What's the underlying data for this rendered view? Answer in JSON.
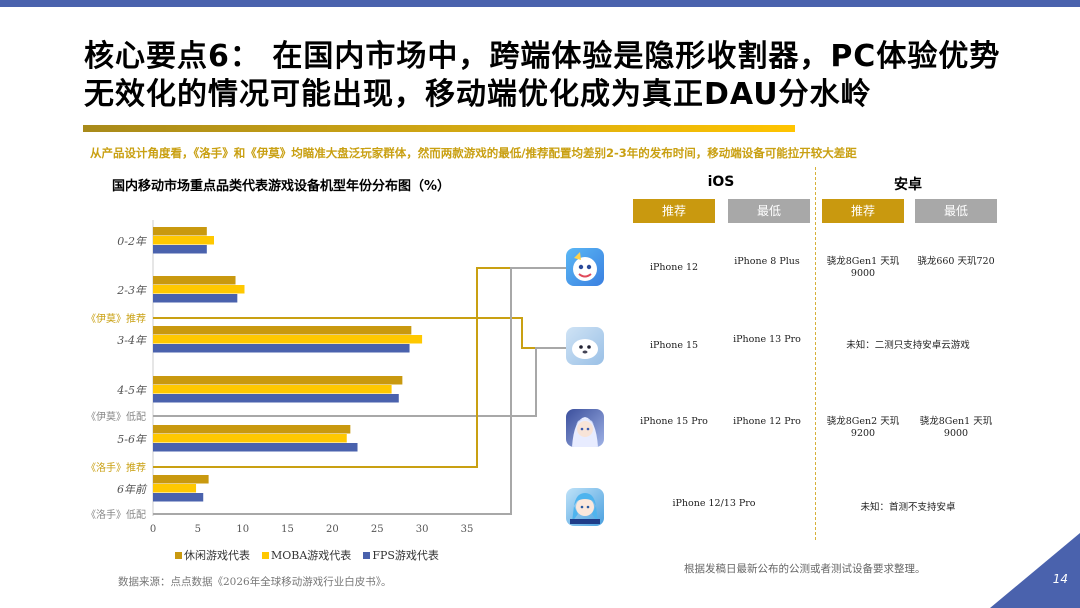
{
  "title_line1": "核心要点6： 在国内市场中，跨端体验是隐形收割器，PC体验优势",
  "title_line2": "无效化的情况可能出现，移动端优化成为真正DAU分水岭",
  "subtitle": "从产品设计角度看，《洛手》和《伊莫》均瞄准大盘泛玩家群体，然而两款游戏的最低/推荐配置均差别2-3年的发布时间，移动端设备可能拉开较大差距",
  "chart_title": "国内移动市场重点品类代表游戏设备机型年份分布图（%）",
  "chart_data": {
    "type": "bar",
    "orientation": "horizontal",
    "title": "国内移动市场重点品类代表游戏设备机型年份分布图（%）",
    "categories": [
      "0-2年",
      "2-3年",
      "3-4年",
      "4-5年",
      "5-6年",
      "6年前"
    ],
    "series": [
      {
        "name": "休闲游戏代表",
        "values": [
          6,
          9.2,
          28.8,
          27.8,
          22,
          6.2
        ]
      },
      {
        "name": "MOBA游戏代表",
        "values": [
          6.8,
          10.2,
          30,
          26.6,
          21.6,
          4.8
        ]
      },
      {
        "name": "FPS游戏代表",
        "values": [
          6,
          9.4,
          28.6,
          27.4,
          22.8,
          5.6
        ]
      }
    ],
    "xlim": [
      0,
      35
    ],
    "xticks": [
      0,
      5,
      10,
      15,
      20,
      25,
      30,
      35
    ],
    "markers": [
      {
        "label": "《伊莫》推荐",
        "highlight": true
      },
      {
        "label": "《伊莫》低配",
        "highlight": false
      },
      {
        "label": "《洛手》推荐",
        "highlight": true
      },
      {
        "label": "《洛手》低配",
        "highlight": false
      }
    ],
    "grid": false,
    "legend_position": "bottom"
  },
  "legend": [
    "休闲游戏代表",
    "MOBA游戏代表",
    "FPS游戏代表"
  ],
  "colors": {
    "series1": "#c9990f",
    "series2": "#ffc800",
    "series3": "#4a62ad",
    "accent_gold": "#c9a012",
    "accent_blue": "#4a62ad",
    "gray": "#a8a8a8"
  },
  "source": "数据来源：点点数据《2026年全球移动游戏行业白皮书》。",
  "table": {
    "headers": [
      "iOS",
      "安卓"
    ],
    "buttons": [
      "推荐",
      "最低",
      "推荐",
      "最低"
    ],
    "rows": [
      {
        "icon": "blue-mascot-game-icon",
        "ios_rec": "iPhone 12",
        "ios_min": "iPhone 8 Plus",
        "and_rec": "骁龙8Gen1 天玑9000",
        "and_min": "骁龙660 天玑720"
      },
      {
        "icon": "white-seal-game-icon",
        "ios_rec": "iPhone 15",
        "ios_min": "iPhone 13 Pro",
        "and_merged": "未知：二测只支持安卓云游戏"
      },
      {
        "icon": "anime-character-game-icon",
        "ios_rec": "iPhone 15 Pro",
        "ios_min": "iPhone 12 Pro",
        "and_rec": "骁龙8Gen2 天玑9200",
        "and_min": "骁龙8Gen1 天玑9000"
      },
      {
        "icon": "anime-girl-game-icon",
        "ios_merged": "iPhone 12/13 Pro",
        "and_merged": "未知：首测不支持安卓"
      }
    ]
  },
  "note": "根据发稿日最新公布的公测或者测试设备要求整理。",
  "page_number": "14"
}
